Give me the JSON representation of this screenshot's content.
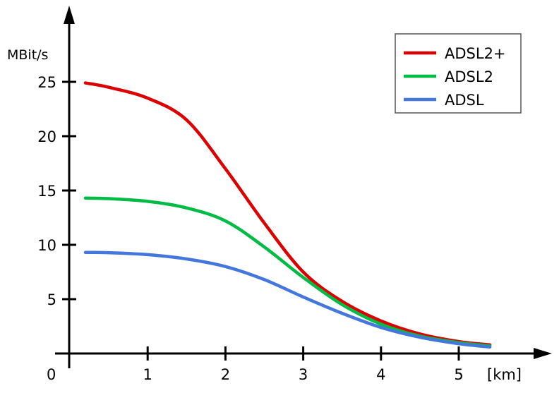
{
  "chart_data": {
    "type": "line",
    "title": "",
    "xlabel": "[km]",
    "ylabel": "MBit/s",
    "xlim": [
      0,
      5.8
    ],
    "ylim": [
      0,
      28
    ],
    "origin_label": "0",
    "x_ticks": [
      1,
      2,
      3,
      4,
      5
    ],
    "x_tick_labels": [
      "1",
      "2",
      "3",
      "4",
      "5"
    ],
    "y_ticks": [
      5,
      10,
      15,
      20,
      25
    ],
    "y_tick_labels": [
      "5",
      "10",
      "15",
      "20",
      "25"
    ],
    "grid": false,
    "legend": "top-right",
    "x": [
      0.2,
      0.5,
      1.0,
      1.5,
      2.0,
      2.5,
      3.0,
      3.5,
      4.0,
      4.5,
      5.0,
      5.4
    ],
    "series": [
      {
        "name": "ADSL2+",
        "color": "#dd0000",
        "values": [
          24.9,
          24.5,
          23.5,
          21.5,
          17.0,
          12.0,
          7.5,
          4.8,
          3.0,
          1.8,
          1.1,
          0.8
        ]
      },
      {
        "name": "ADSL2",
        "color": "#00bb44",
        "values": [
          14.3,
          14.25,
          14.0,
          13.4,
          12.2,
          9.8,
          7.0,
          4.5,
          2.7,
          1.6,
          1.0,
          0.7
        ]
      },
      {
        "name": "ADSL",
        "color": "#4477dd",
        "values": [
          9.3,
          9.28,
          9.1,
          8.7,
          8.0,
          6.8,
          5.2,
          3.7,
          2.4,
          1.5,
          0.9,
          0.6
        ]
      }
    ]
  }
}
